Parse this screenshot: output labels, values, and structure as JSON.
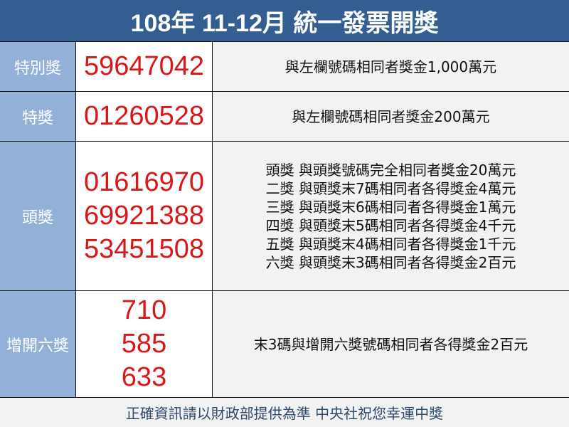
{
  "title": "108年 11-12月 統一發票開獎",
  "rows": [
    {
      "label": "特別獎",
      "numbers": [
        "59647042"
      ],
      "desc": [
        "與左欄號碼相同者獎金1,000萬元"
      ]
    },
    {
      "label": "特獎",
      "numbers": [
        "01260528"
      ],
      "desc": [
        "與左欄號碼相同者獎金200萬元"
      ]
    },
    {
      "label": "頭獎",
      "numbers": [
        "01616970",
        "69921388",
        "53451508"
      ],
      "desc": [
        "頭獎 與頭獎號碼完全相同者獎金20萬元",
        "二獎 與頭獎末7碼相同者各得獎金4萬元",
        "三獎 與頭獎末6碼相同者各得獎金1萬元",
        "四獎 與頭獎末5碼相同者各得獎金4千元",
        "五獎 與頭獎末4碼相同者各得獎金1千元",
        "六獎 與頭獎末3碼相同者各得獎金2百元"
      ]
    },
    {
      "label": "增開六獎",
      "numbers": [
        "710",
        "585",
        "633"
      ],
      "desc": [
        "末3碼與增開六獎號碼相同者各得獎金2百元"
      ]
    }
  ],
  "footer": "正確資訊請以財政部提供為準 中央社祝您幸運中獎",
  "colors": {
    "header": "#345d91",
    "label": "#93b1d8",
    "number": "#d81818",
    "desc_bg": "#f2f2f2"
  }
}
